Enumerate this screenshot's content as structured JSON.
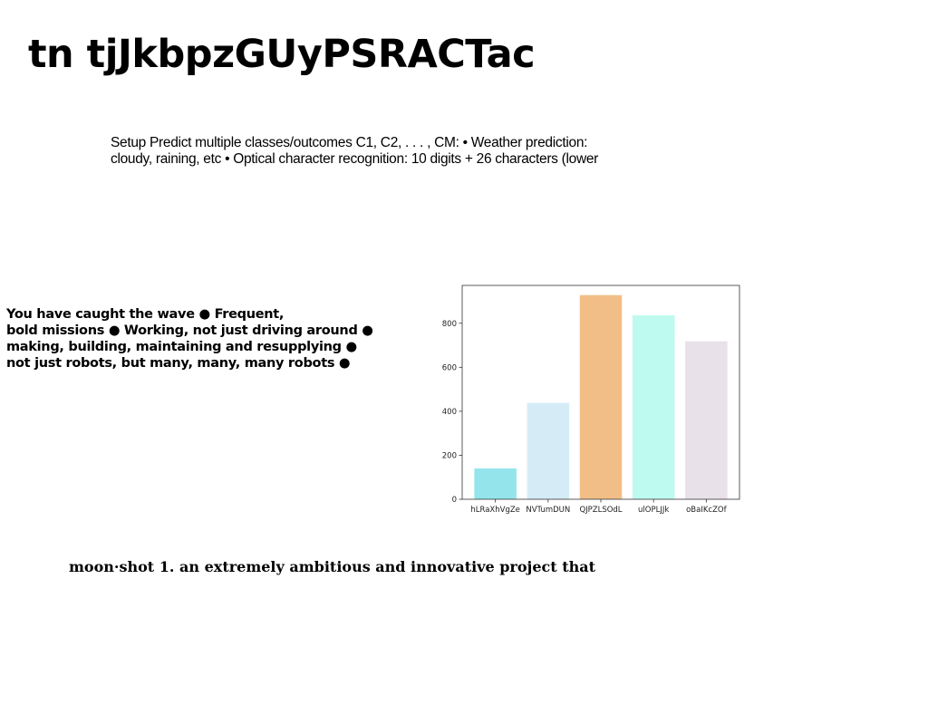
{
  "title": "tn tjJkbpzGUyPSRACTac",
  "setup": {
    "lines": [
      "Setup Predict multiple classes/outcomes C1, C2, . . . , CM: • Weather prediction:",
      "cloudy, raining, etc • Optical character recognition: 10 digits + 26 characters (lower"
    ]
  },
  "wave": {
    "lines": [
      "You have caught the wave ● Frequent,",
      "bold missions ● Working, not just driving around ●",
      "making, building, maintaining and resupplying ●",
      "not just robots, but many, many, many robots ●"
    ]
  },
  "moonshot": "moon·shot 1. an extremely ambitious and innovative project that",
  "chart_data": {
    "type": "bar",
    "categories": [
      "hLRaXhVgZe",
      "NVTumDUN",
      "QJPZLSOdL",
      "ulOPLJJk",
      "oBaIKcZOf"
    ],
    "values": [
      140,
      438,
      928,
      836,
      718
    ],
    "colors": [
      "#94e5eb",
      "#d5ecf7",
      "#f2be88",
      "#befaf0",
      "#e8e1ea"
    ],
    "ylim": [
      0,
      972
    ],
    "yticks": [
      0,
      200,
      400,
      600,
      800
    ],
    "title": "",
    "xlabel": "",
    "ylabel": "",
    "grid": false
  }
}
